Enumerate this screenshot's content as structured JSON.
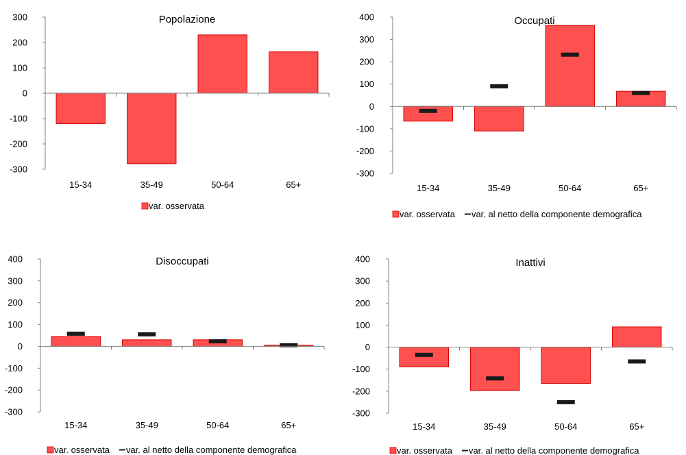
{
  "chart_data": [
    {
      "type": "bar",
      "title": "Popolazione",
      "categories": [
        "15-34",
        "35-49",
        "50-64",
        "65+"
      ],
      "ylim": [
        -300,
        300
      ],
      "yticks": [
        -300,
        -200,
        -100,
        0,
        100,
        200,
        300
      ],
      "series": [
        {
          "name": "var. osservata",
          "kind": "bar",
          "values": [
            -120,
            -278,
            230,
            163
          ]
        }
      ],
      "legend": [
        "var. osservata"
      ],
      "bar_color": "#FF5050",
      "marker_color": "#1a1a1a"
    },
    {
      "type": "bar",
      "title": "Occupati",
      "categories": [
        "15-34",
        "35-49",
        "50-64",
        "65+"
      ],
      "ylim": [
        -300,
        400
      ],
      "yticks": [
        -300,
        -200,
        -100,
        0,
        100,
        200,
        300,
        400
      ],
      "series": [
        {
          "name": "var. osservata",
          "kind": "bar",
          "values": [
            -66,
            -110,
            363,
            68
          ]
        },
        {
          "name": "var. al netto della componente demografica",
          "kind": "marker",
          "values": [
            -20,
            90,
            232,
            60
          ]
        }
      ],
      "legend": [
        "var. osservata",
        "var. al netto della componente demografica"
      ],
      "bar_color": "#FF5050",
      "marker_color": "#1a1a1a"
    },
    {
      "type": "bar",
      "title": "Disoccupati",
      "categories": [
        "15-34",
        "35-49",
        "50-64",
        "65+"
      ],
      "ylim": [
        -300,
        400
      ],
      "yticks": [
        -300,
        -200,
        -100,
        0,
        100,
        200,
        300,
        400
      ],
      "series": [
        {
          "name": "var. osservata",
          "kind": "bar",
          "values": [
            45,
            30,
            30,
            5
          ]
        },
        {
          "name": "var. al netto della componente demografica",
          "kind": "marker",
          "values": [
            58,
            55,
            23,
            5
          ]
        }
      ],
      "legend": [
        "var. osservata",
        "var. al netto della componente demografica"
      ],
      "bar_color": "#FF5050",
      "marker_color": "#1a1a1a"
    },
    {
      "type": "bar",
      "title": "Inattivi",
      "categories": [
        "15-34",
        "35-49",
        "50-64",
        "65+"
      ],
      "ylim": [
        -300,
        400
      ],
      "yticks": [
        -300,
        -200,
        -100,
        0,
        100,
        200,
        300,
        400
      ],
      "series": [
        {
          "name": "var. osservata",
          "kind": "bar",
          "values": [
            -90,
            -197,
            -165,
            92
          ]
        },
        {
          "name": "var. al netto della componente demografica",
          "kind": "marker",
          "values": [
            -35,
            -142,
            -250,
            -65
          ]
        }
      ],
      "legend": [
        "var. osservata",
        "var. al netto della componente demografica"
      ],
      "bar_color": "#FF5050",
      "marker_color": "#1a1a1a"
    }
  ]
}
